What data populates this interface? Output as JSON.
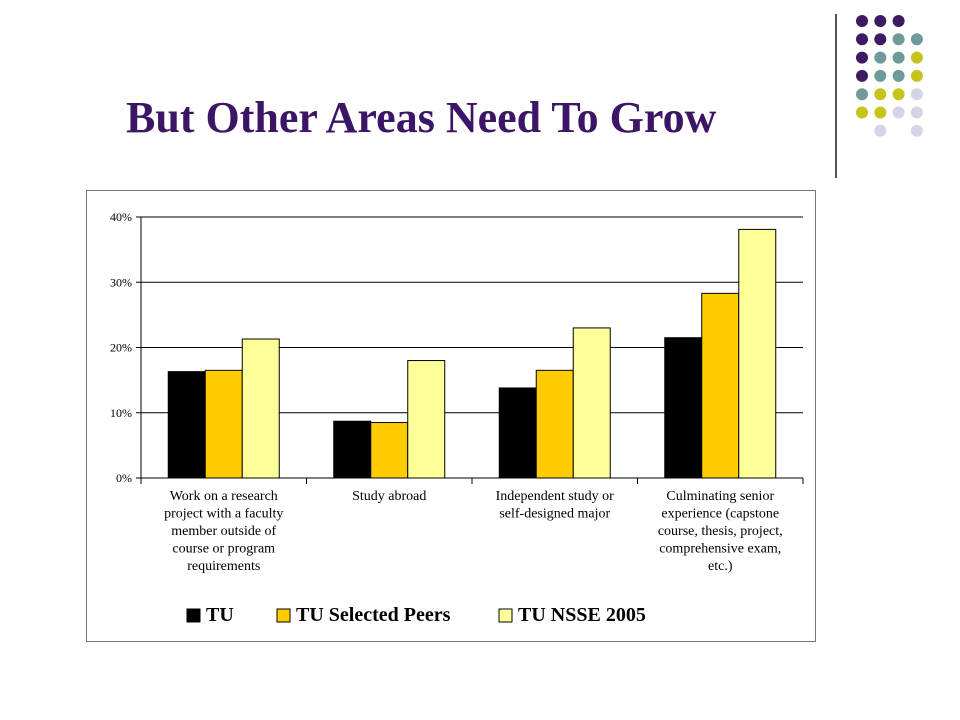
{
  "slide": {
    "title": "But Other Areas Need To Grow"
  },
  "decoration": {
    "dot_colors": [
      "#3d1b63",
      "#6f9a9a",
      "#c6c41c",
      "#d4d4e8"
    ],
    "dot_grid": [
      [
        0,
        0,
        0,
        null
      ],
      [
        0,
        0,
        1,
        1
      ],
      [
        0,
        1,
        1,
        2
      ],
      [
        0,
        1,
        1,
        2
      ],
      [
        1,
        2,
        2,
        3
      ],
      [
        2,
        2,
        3,
        3
      ],
      [
        null,
        3,
        null,
        3
      ]
    ],
    "line_color": "#555555"
  },
  "chart_data": {
    "type": "bar",
    "categories": [
      [
        "Work on a research",
        "project with a faculty",
        "member outside of",
        "course or program",
        "requirements"
      ],
      [
        "Study abroad"
      ],
      [
        "Independent study or",
        "self-designed major"
      ],
      [
        "Culminating senior",
        "experience (capstone",
        "course, thesis, project,",
        "comprehensive exam,",
        "etc.)"
      ]
    ],
    "series": [
      {
        "name": "TU",
        "color": "#000000",
        "values": [
          16.3,
          8.7,
          13.8,
          21.5
        ]
      },
      {
        "name": "TU Selected Peers",
        "color": "#ffcc00",
        "values": [
          16.5,
          8.5,
          16.5,
          28.3
        ]
      },
      {
        "name": "TU NSSE 2005",
        "color": "#ffff99",
        "values": [
          21.3,
          18.0,
          23.0,
          38.1
        ]
      }
    ],
    "ylim": [
      0,
      40
    ],
    "yticks": [
      "0%",
      "10%",
      "20%",
      "30%",
      "40%"
    ],
    "grid": true,
    "legend_position": "bottom"
  }
}
